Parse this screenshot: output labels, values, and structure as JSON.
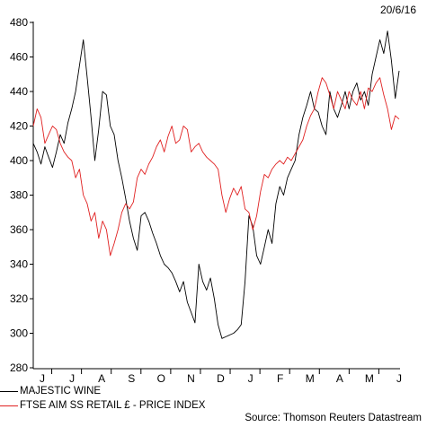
{
  "header": {
    "date": "20/6/16"
  },
  "source": "Source: Thomson Reuters Datastream",
  "colors": {
    "series_a": "#000000",
    "series_b": "#e02020",
    "axis": "#000000"
  },
  "chart_data": {
    "type": "line",
    "title": "",
    "xlabel": "",
    "ylabel": "",
    "ylim": [
      280,
      480
    ],
    "yticks": [
      280,
      300,
      320,
      340,
      360,
      380,
      400,
      420,
      440,
      460,
      480
    ],
    "x_period_start": "2015-06",
    "x_period_end": "2016-06-20",
    "xtick_labels": [
      "J",
      "J",
      "A",
      "S",
      "O",
      "N",
      "D",
      "J",
      "F",
      "M",
      "A",
      "M",
      "J"
    ],
    "legend_position": "bottom-left",
    "grid": false,
    "series": [
      {
        "name": "MAJESTIC WINE",
        "color": "#000000",
        "values": [
          410,
          405,
          398,
          408,
          402,
          396,
          405,
          415,
          410,
          422,
          430,
          440,
          455,
          470,
          448,
          425,
          400,
          418,
          440,
          438,
          420,
          415,
          400,
          390,
          378,
          365,
          355,
          348,
          368,
          370,
          365,
          358,
          352,
          345,
          340,
          338,
          335,
          330,
          324,
          330,
          318,
          312,
          306,
          340,
          330,
          325,
          332,
          320,
          305,
          297,
          298,
          299,
          300,
          302,
          305,
          330,
          368,
          362,
          345,
          340,
          350,
          360,
          352,
          375,
          385,
          380,
          390,
          395,
          400,
          415,
          425,
          432,
          440,
          430,
          428,
          420,
          415,
          440,
          430,
          425,
          432,
          440,
          430,
          440,
          445,
          435,
          440,
          432,
          450,
          460,
          470,
          462,
          475,
          458,
          436,
          452
        ]
      },
      {
        "name": "FTSE AIM SS RETAIL £ - PRICE INDEX",
        "color": "#e02020",
        "values": [
          420,
          430,
          425,
          410,
          415,
          420,
          418,
          410,
          405,
          402,
          400,
          390,
          395,
          380,
          375,
          365,
          370,
          355,
          365,
          360,
          345,
          352,
          360,
          370,
          375,
          372,
          376,
          390,
          395,
          392,
          398,
          402,
          408,
          412,
          405,
          414,
          420,
          410,
          412,
          420,
          418,
          405,
          408,
          410,
          405,
          402,
          400,
          398,
          395,
          380,
          370,
          378,
          384,
          380,
          385,
          372,
          370,
          360,
          368,
          382,
          392,
          390,
          395,
          398,
          400,
          398,
          402,
          400,
          404,
          408,
          412,
          420,
          426,
          430,
          440,
          448,
          445,
          438,
          430,
          440,
          435,
          430,
          440,
          435,
          432,
          440,
          430,
          442,
          440,
          445,
          448,
          438,
          430,
          418,
          426,
          424
        ]
      }
    ]
  }
}
